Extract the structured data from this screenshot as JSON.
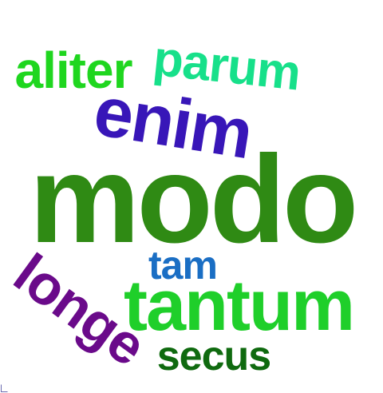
{
  "words": [
    {
      "text": "modo",
      "color": "#2f8a14"
    },
    {
      "text": "tantum",
      "color": "#1fcf2a"
    },
    {
      "text": "enim",
      "color": "#3816b8"
    },
    {
      "text": "parum",
      "color": "#17e08a"
    },
    {
      "text": "aliter",
      "color": "#1fd61f"
    },
    {
      "text": "longe",
      "color": "#6a0a8a"
    },
    {
      "text": "secus",
      "color": "#0f6a0f"
    },
    {
      "text": "tam",
      "color": "#1a6ec4"
    }
  ]
}
